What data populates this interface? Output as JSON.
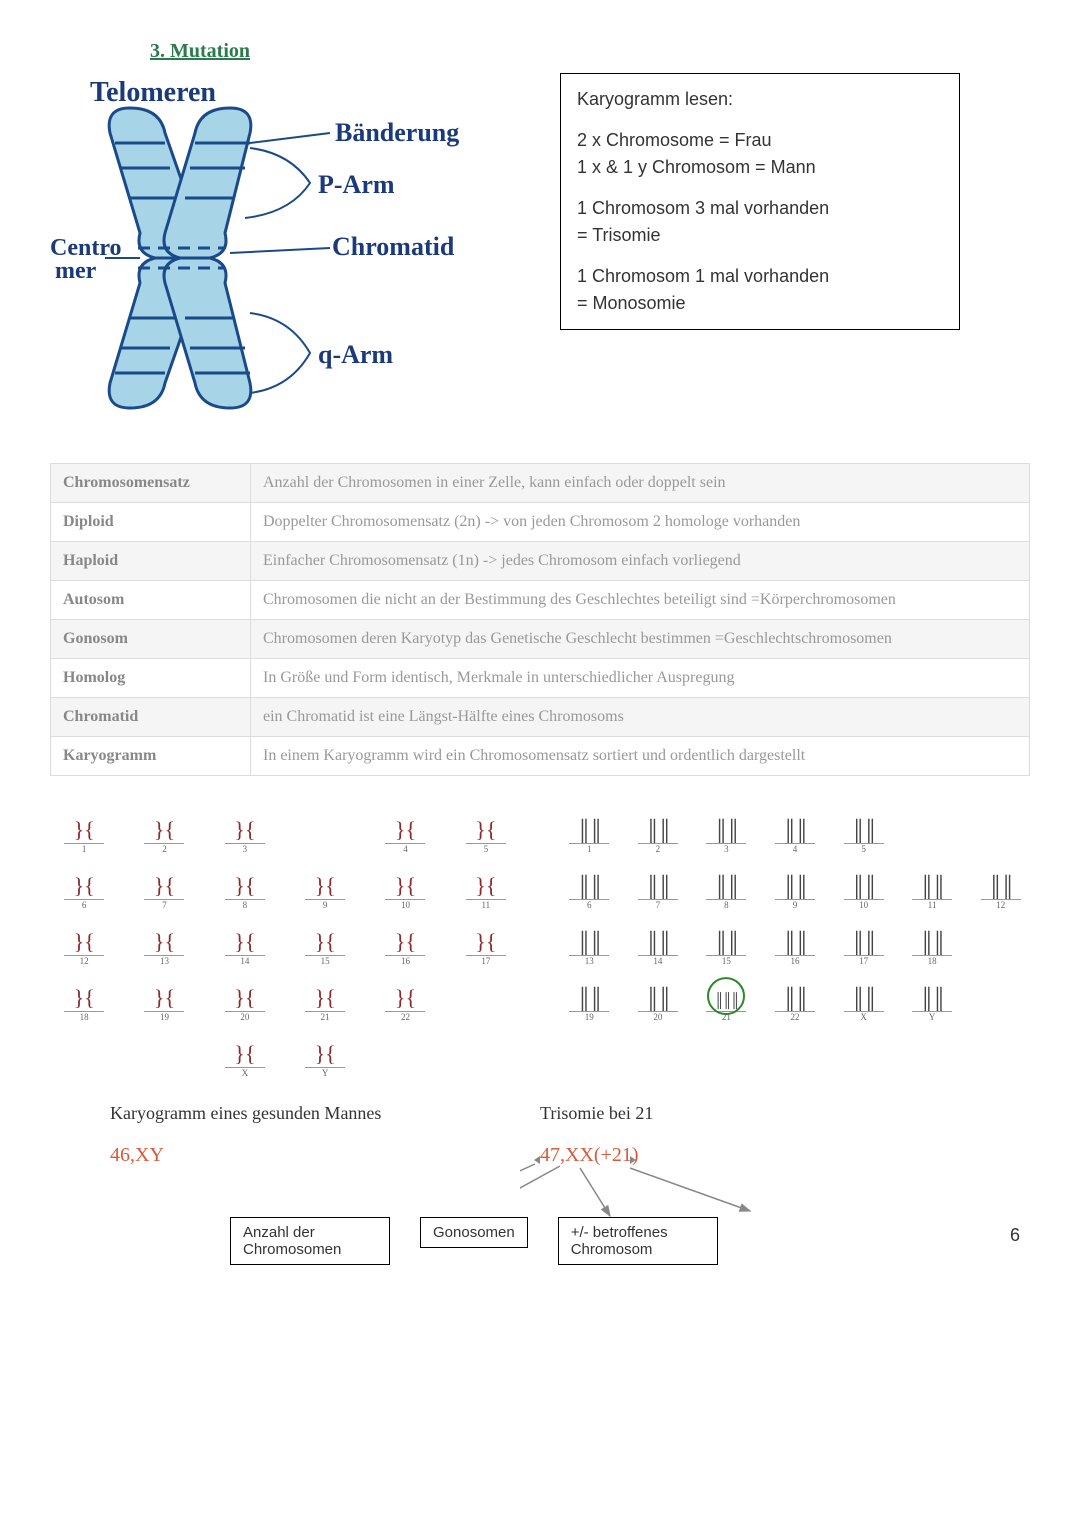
{
  "heading": "3.  Mutation",
  "chromosome_labels": {
    "telomeren": "Telomeren",
    "banderung": "Bänderung",
    "parm": "P-Arm",
    "chromatid": "Chromatid",
    "centromer": "Centro\nmer",
    "qarm": "q-Arm"
  },
  "info_box": {
    "title": "Karyogramm lesen:",
    "line1": "2 x Chromosome = Frau",
    "line2": "1 x & 1 y Chromosom = Mann",
    "line3a": "1 Chromosom 3 mal vorhanden",
    "line3b": "= Trisomie",
    "line4a": "1 Chromosom 1 mal vorhanden",
    "line4b": "= Monosomie"
  },
  "definitions": [
    {
      "term": "Chromosomensatz",
      "def": "Anzahl der Chromosomen in einer Zelle, kann einfach oder doppelt sein"
    },
    {
      "term": "Diploid",
      "def": "Doppelter Chromosomensatz (2n) -> von jeden Chromosom 2 homologe vorhanden"
    },
    {
      "term": "Haploid",
      "def": "Einfacher Chromosomensatz (1n) -> jedes Chromosom einfach vorliegend"
    },
    {
      "term": "Autosom",
      "def": "Chromosomen die nicht an der Bestimmung des Geschlechtes beteiligt sind =Körperchromosomen"
    },
    {
      "term": "Gonosom",
      "def": "Chromosomen deren Karyotyp das Genetische Geschlecht bestimmen =Geschlechtschromosomen"
    },
    {
      "term": "Homolog",
      "def": "In Größe und Form identisch, Merkmale in unterschiedlicher Auspregung"
    },
    {
      "term": "Chromatid",
      "def": "ein Chromatid ist eine Längst-Hälfte eines Chromosoms"
    },
    {
      "term": "Karyogramm",
      "def": "In einem Karyogramm wird ein Chromosomensatz sortiert und ordentlich dargestellt"
    }
  ],
  "karyogram_left": {
    "rows": [
      [
        "1",
        "2",
        "3",
        "",
        "4",
        "5"
      ],
      [
        "6",
        "7",
        "8",
        "9",
        "10",
        "11"
      ],
      [
        "12",
        "13",
        "14",
        "15",
        "16",
        "17"
      ],
      [
        "18",
        "19",
        "20",
        "21",
        "22",
        ""
      ],
      [
        "",
        "",
        "X",
        "Y",
        "",
        ""
      ]
    ]
  },
  "karyogram_right": {
    "rows": [
      [
        "1",
        "2",
        "3",
        "4",
        "5",
        "",
        ""
      ],
      [
        "6",
        "7",
        "8",
        "9",
        "10",
        "11",
        "12"
      ],
      [
        "13",
        "14",
        "15",
        "16",
        "17",
        "18",
        ""
      ],
      [
        "19",
        "20",
        "21",
        "22",
        "X",
        "Y",
        ""
      ]
    ],
    "circled": "21"
  },
  "captions": {
    "left": "Karyogramm eines gesunden Mannes",
    "right": "Trisomie bei 21"
  },
  "notations": {
    "left": "46,XY",
    "right": "47,XX(+21)"
  },
  "label_boxes": {
    "box1": "Anzahl der Chromosomen",
    "box2": "Gonosomen",
    "box3": "+/- betroffenes Chromosom"
  },
  "page_number": "6",
  "colors": {
    "heading": "#2a7a4a",
    "handwriting": "#1a3a7a",
    "chromosome_fill": "#a8d4e8",
    "chromosome_stroke": "#1a4a8a",
    "notation": "#d85a3a",
    "circle": "#2a8a2a",
    "table_text": "#999999"
  }
}
